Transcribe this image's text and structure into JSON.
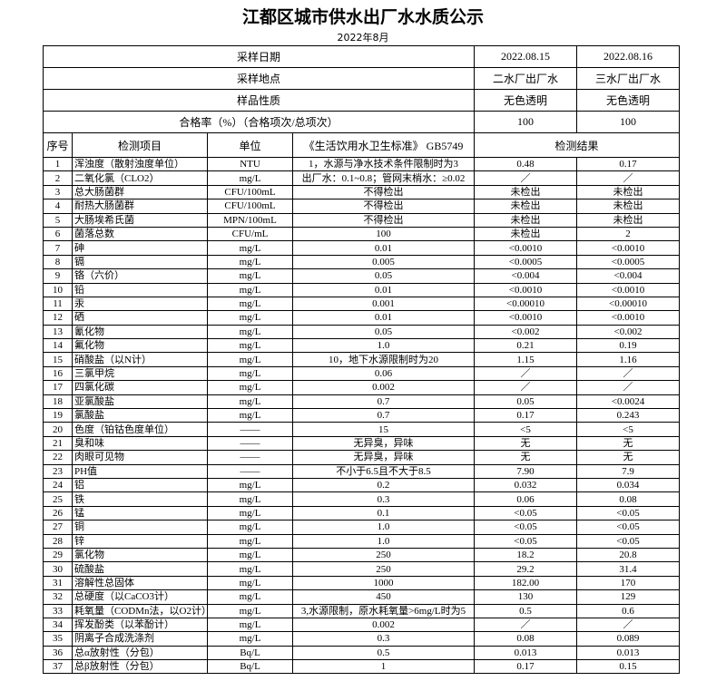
{
  "header": {
    "title": "江都区城市供水出厂水水质公示",
    "subtitle": "2022年8月"
  },
  "table": {
    "info_rows": [
      [
        "采样日期",
        "2022.08.15",
        "2022.08.16"
      ],
      [
        "采样地点",
        "二水厂出厂水",
        "三水厂出厂水"
      ],
      [
        "样品性质",
        "无色透明",
        "无色透明"
      ],
      [
        "合格率（%）（合格项次/总项次）",
        "100",
        "100"
      ]
    ],
    "columns": [
      "序号",
      "检测项目",
      "单位",
      "《生活饮用水卫生标准》 GB5749",
      "检测结果"
    ],
    "rows": [
      [
        "1",
        "浑浊度（散射浊度单位）",
        "NTU",
        "1，水源与净水技术条件限制时为3",
        "0.48",
        "0.17"
      ],
      [
        "2",
        "二氧化氯（CLO2）",
        "mg/L",
        "出厂水：0.1~0.8；管网末梢水：≥0.02",
        "／",
        "／"
      ],
      [
        "3",
        "总大肠菌群",
        "CFU/100mL",
        "不得检出",
        "未检出",
        "未检出"
      ],
      [
        "4",
        "耐热大肠菌群",
        "CFU/100mL",
        "不得检出",
        "未检出",
        "未检出"
      ],
      [
        "5",
        "大肠埃希氏菌",
        "MPN/100mL",
        "不得检出",
        "未检出",
        "未检出"
      ],
      [
        "6",
        "菌落总数",
        "CFU/mL",
        "100",
        "未检出",
        "2"
      ],
      [
        "7",
        "砷",
        "mg/L",
        "0.01",
        "<0.0010",
        "<0.0010"
      ],
      [
        "8",
        "镉",
        "mg/L",
        "0.005",
        "<0.0005",
        "<0.0005"
      ],
      [
        "9",
        "铬（六价）",
        "mg/L",
        "0.05",
        "<0.004",
        "<0.004"
      ],
      [
        "10",
        "铅",
        "mg/L",
        "0.01",
        "<0.0010",
        "<0.0010"
      ],
      [
        "11",
        "汞",
        "mg/L",
        "0.001",
        "<0.00010",
        "<0.00010"
      ],
      [
        "12",
        "硒",
        "mg/L",
        "0.01",
        "<0.0010",
        "<0.0010"
      ],
      [
        "13",
        "氰化物",
        "mg/L",
        "0.05",
        "<0.002",
        "<0.002"
      ],
      [
        "14",
        "氟化物",
        "mg/L",
        "1.0",
        "0.21",
        "0.19"
      ],
      [
        "15",
        "硝酸盐（以N计）",
        "mg/L",
        "10，地下水源限制时为20",
        "1.15",
        "1.16"
      ],
      [
        "16",
        "三氯甲烷",
        "mg/L",
        "0.06",
        "／",
        "／"
      ],
      [
        "17",
        "四氯化碳",
        "mg/L",
        "0.002",
        "／",
        "／"
      ],
      [
        "18",
        "亚氯酸盐",
        "mg/L",
        "0.7",
        "0.05",
        "<0.0024"
      ],
      [
        "19",
        "氯酸盐",
        "mg/L",
        "0.7",
        "0.17",
        "0.243"
      ],
      [
        "20",
        "色度（铂钴色度单位）",
        "——",
        "15",
        "<5",
        "<5"
      ],
      [
        "21",
        "臭和味",
        "——",
        "无异臭，异味",
        "无",
        "无"
      ],
      [
        "22",
        "肉眼可见物",
        "——",
        "无异臭，异味",
        "无",
        "无"
      ],
      [
        "23",
        "PH值",
        "——",
        "不小于6.5且不大于8.5",
        "7.90",
        "7.9"
      ],
      [
        "24",
        "铝",
        "mg/L",
        "0.2",
        "0.032",
        "0.034"
      ],
      [
        "25",
        "铁",
        "mg/L",
        "0.3",
        "0.06",
        "0.08"
      ],
      [
        "26",
        "锰",
        "mg/L",
        "0.1",
        "<0.05",
        "<0.05"
      ],
      [
        "27",
        "铜",
        "mg/L",
        "1.0",
        "<0.05",
        "<0.05"
      ],
      [
        "28",
        "锌",
        "mg/L",
        "1.0",
        "<0.05",
        "<0.05"
      ],
      [
        "29",
        "氯化物",
        "mg/L",
        "250",
        "18.2",
        "20.8"
      ],
      [
        "30",
        "硫酸盐",
        "mg/L",
        "250",
        "29.2",
        "31.4"
      ],
      [
        "31",
        "溶解性总固体",
        "mg/L",
        "1000",
        "182.00",
        "170"
      ],
      [
        "32",
        "总硬度（以CaCO3计）",
        "mg/L",
        "450",
        "130",
        "129"
      ],
      [
        "33",
        "耗氧量（CODMn法，以O2计）",
        "mg/L",
        "3,水源限制，原水耗氧量>6mg/L时为5",
        "0.5",
        "0.6"
      ],
      [
        "34",
        "挥发酚类（以苯酚计）",
        "mg/L",
        "0.002",
        "／",
        "／"
      ],
      [
        "35",
        "阴离子合成洗涤剂",
        "mg/L",
        "0.3",
        "0.08",
        "0.089"
      ],
      [
        "36",
        "总α放射性（分包）",
        "Bq/L",
        "0.5",
        "0.013",
        "0.013"
      ],
      [
        "37",
        "总β放射性（分包）",
        "Bq/L",
        "1",
        "0.17",
        "0.15"
      ]
    ]
  }
}
